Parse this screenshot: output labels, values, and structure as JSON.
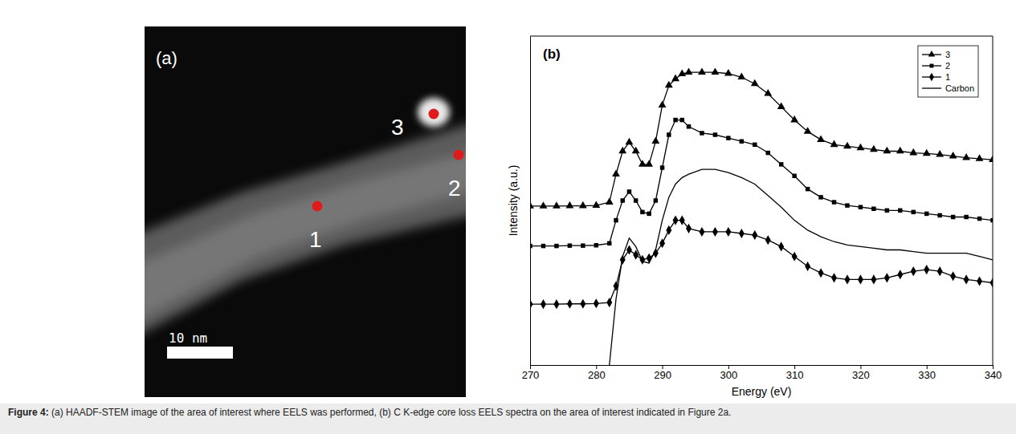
{
  "image_panel": {
    "label": "(a)",
    "points": [
      "1",
      "2",
      "3"
    ],
    "scale_bar": "10 nm"
  },
  "chart_data": {
    "type": "line",
    "title": "(b)",
    "x_label": "Energy (eV)",
    "y_label": "Intensity (a.u.)",
    "x": [
      270,
      272,
      274,
      276,
      278,
      280,
      282,
      283,
      284,
      285,
      286,
      287,
      288,
      289,
      290,
      291,
      292,
      293,
      294,
      296,
      298,
      300,
      302,
      304,
      306,
      308,
      310,
      312,
      314,
      316,
      318,
      320,
      322,
      324,
      326,
      328,
      330,
      332,
      334,
      336,
      338,
      340
    ],
    "series": [
      {
        "name": "3",
        "color": "#000000",
        "marker": "triangle",
        "values": [
          48.3,
          48.3,
          48.3,
          48.4,
          48.4,
          48.5,
          49.5,
          58,
          65,
          67.7,
          65,
          61,
          61,
          68,
          79,
          85,
          87,
          88.5,
          89,
          89,
          89,
          88.6,
          87.5,
          85.5,
          82.5,
          78.5,
          74.5,
          71,
          68.5,
          67,
          66.5,
          66,
          65.5,
          65,
          65,
          64.5,
          64.3,
          64,
          63.5,
          63,
          62.7,
          62.4
        ]
      },
      {
        "name": "2",
        "color": "#000000",
        "marker": "square",
        "values": [
          36.2,
          36.2,
          36.2,
          36.3,
          36.3,
          36.4,
          37,
          44,
          50,
          52.7,
          50,
          46.5,
          46,
          50,
          60,
          70,
          74.5,
          74.5,
          72.5,
          70.5,
          70,
          69,
          68,
          67,
          64.5,
          61,
          57.5,
          53.5,
          51,
          49.5,
          48.5,
          48,
          47.5,
          47,
          47,
          46.5,
          46,
          45.5,
          45,
          45,
          44.5,
          44
        ]
      },
      {
        "name": "1",
        "color": "#000000",
        "marker": "diamond",
        "values": [
          18.5,
          18.5,
          18.5,
          18.6,
          18.6,
          18.7,
          19,
          24,
          32,
          35,
          33.5,
          32,
          32.5,
          34,
          37,
          41,
          44,
          44,
          41.5,
          40.5,
          40.5,
          40.5,
          40,
          39.5,
          38,
          36,
          33,
          30,
          28,
          26.5,
          26,
          26,
          26,
          26.5,
          27.5,
          28.5,
          29,
          28.5,
          27,
          26,
          25.5,
          25
        ]
      },
      {
        "name": "Carbon",
        "color": "#000000",
        "marker": "none",
        "values": [
          null,
          null,
          null,
          null,
          null,
          null,
          0,
          20,
          33,
          38.6,
          36,
          31.5,
          31,
          35,
          44,
          51,
          55,
          57,
          58,
          59.5,
          59.5,
          58.5,
          57,
          55,
          51.5,
          48,
          44,
          41,
          39,
          37.5,
          36.5,
          36,
          35.5,
          35,
          35,
          34.5,
          34,
          34,
          34,
          34,
          33,
          32
        ]
      }
    ],
    "xlim": [
      270,
      340
    ],
    "xticks": [
      270,
      280,
      290,
      300,
      310,
      320,
      330,
      340
    ],
    "ylim": [
      0,
      100
    ],
    "tick_labels": "x",
    "legend": "upper right"
  },
  "caption": {
    "label": "Figure 4:",
    "text": "(a) HAADF-STEM image of the area of interest where EELS was performed, (b) C K-edge core loss EELS spectra on the area of interest indicated in Figure 2a."
  }
}
